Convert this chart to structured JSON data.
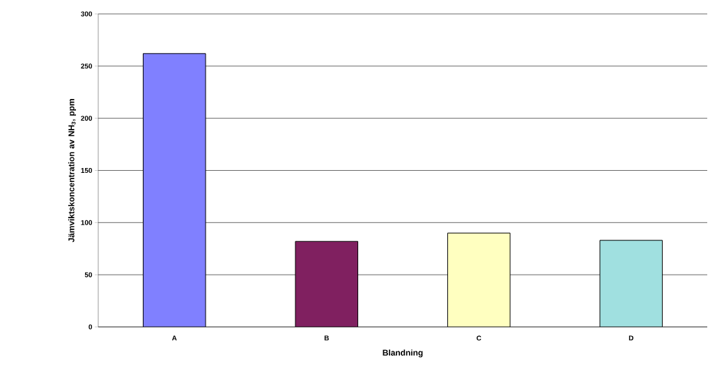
{
  "chart_data": {
    "type": "bar",
    "xlabel": "Blandning",
    "ylabel": "Jämviktskoncentration av NH$_{3}$, ppm",
    "categories": [
      "A",
      "B",
      "C",
      "D"
    ],
    "values": [
      262,
      82,
      90,
      83
    ],
    "colors": [
      "#8080ff",
      "#802060",
      "#ffffc0",
      "#a0e0e0"
    ],
    "ylim": [
      0,
      300
    ],
    "yticks": [
      0,
      50,
      100,
      150,
      200,
      250,
      300
    ],
    "grid": "y"
  }
}
